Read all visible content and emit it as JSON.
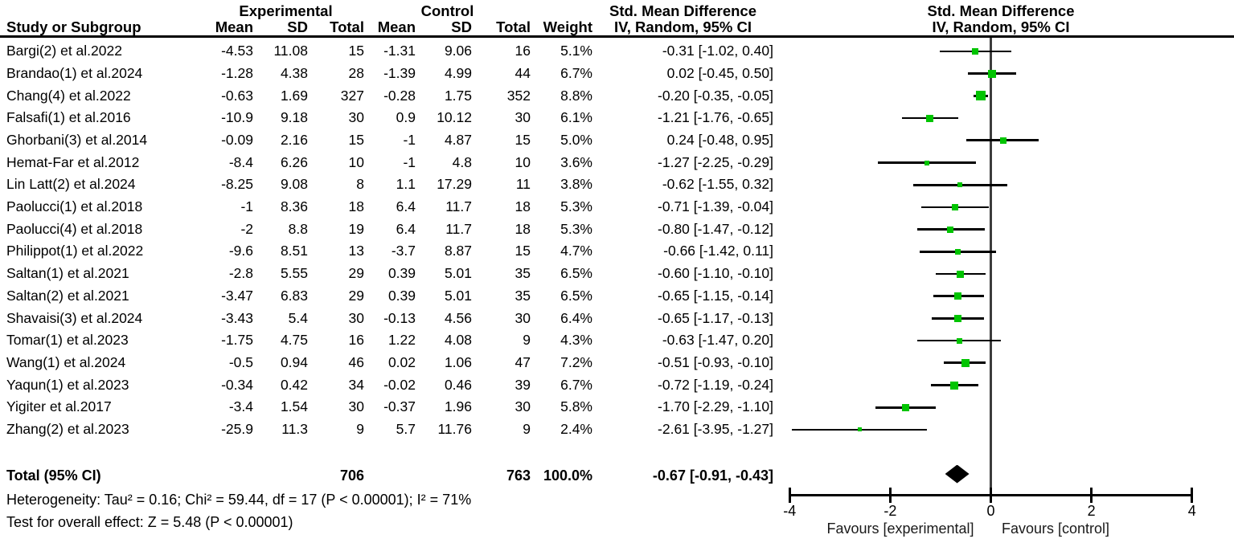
{
  "chart_data": {
    "type": "scatter",
    "subtype": "forest-plot-meta-analysis",
    "effect_measure": "Std. Mean Difference",
    "method": "IV, Random, 95% CI",
    "columns": {
      "group1_label": "Experimental",
      "group2_label": "Control",
      "study": "Study or Subgroup",
      "mean": "Mean",
      "sd": "SD",
      "total": "Total",
      "weight": "Weight",
      "smd_header": "Std. Mean Difference",
      "ci_header": "IV, Random, 95% CI"
    },
    "studies": [
      {
        "name": "Bargi(2) et al.2022",
        "exp_mean": "-4.53",
        "exp_sd": "11.08",
        "exp_total": "15",
        "ctl_mean": "-1.31",
        "ctl_sd": "9.06",
        "ctl_total": "16",
        "weight": "5.1%",
        "weight_pct": 5.1,
        "ci_text": "-0.31 [-1.02, 0.40]",
        "effect": -0.31,
        "ci_low": -1.02,
        "ci_high": 0.4
      },
      {
        "name": "Brandao(1) et al.2024",
        "exp_mean": "-1.28",
        "exp_sd": "4.38",
        "exp_total": "28",
        "ctl_mean": "-1.39",
        "ctl_sd": "4.99",
        "ctl_total": "44",
        "weight": "6.7%",
        "weight_pct": 6.7,
        "ci_text": "0.02 [-0.45, 0.50]",
        "effect": 0.02,
        "ci_low": -0.45,
        "ci_high": 0.5
      },
      {
        "name": "Chang(4) et al.2022",
        "exp_mean": "-0.63",
        "exp_sd": "1.69",
        "exp_total": "327",
        "ctl_mean": "-0.28",
        "ctl_sd": "1.75",
        "ctl_total": "352",
        "weight": "8.8%",
        "weight_pct": 8.8,
        "ci_text": "-0.20 [-0.35, -0.05]",
        "effect": -0.2,
        "ci_low": -0.35,
        "ci_high": -0.05
      },
      {
        "name": "Falsafi(1) et al.2016",
        "exp_mean": "-10.9",
        "exp_sd": "9.18",
        "exp_total": "30",
        "ctl_mean": "0.9",
        "ctl_sd": "10.12",
        "ctl_total": "30",
        "weight": "6.1%",
        "weight_pct": 6.1,
        "ci_text": "-1.21 [-1.76, -0.65]",
        "effect": -1.21,
        "ci_low": -1.76,
        "ci_high": -0.65
      },
      {
        "name": "Ghorbani(3) et al.2014",
        "exp_mean": "-0.09",
        "exp_sd": "2.16",
        "exp_total": "15",
        "ctl_mean": "-1",
        "ctl_sd": "4.87",
        "ctl_total": "15",
        "weight": "5.0%",
        "weight_pct": 5.0,
        "ci_text": "0.24 [-0.48, 0.95]",
        "effect": 0.24,
        "ci_low": -0.48,
        "ci_high": 0.95
      },
      {
        "name": "Hemat-Far et al.2012",
        "exp_mean": "-8.4",
        "exp_sd": "6.26",
        "exp_total": "10",
        "ctl_mean": "-1",
        "ctl_sd": "4.8",
        "ctl_total": "10",
        "weight": "3.6%",
        "weight_pct": 3.6,
        "ci_text": "-1.27 [-2.25, -0.29]",
        "effect": -1.27,
        "ci_low": -2.25,
        "ci_high": -0.29
      },
      {
        "name": "Lin Latt(2) et al.2024",
        "exp_mean": "-8.25",
        "exp_sd": "9.08",
        "exp_total": "8",
        "ctl_mean": "1.1",
        "ctl_sd": "17.29",
        "ctl_total": "11",
        "weight": "3.8%",
        "weight_pct": 3.8,
        "ci_text": "-0.62 [-1.55, 0.32]",
        "effect": -0.62,
        "ci_low": -1.55,
        "ci_high": 0.32
      },
      {
        "name": "Paolucci(1) et al.2018",
        "exp_mean": "-1",
        "exp_sd": "8.36",
        "exp_total": "18",
        "ctl_mean": "6.4",
        "ctl_sd": "11.7",
        "ctl_total": "18",
        "weight": "5.3%",
        "weight_pct": 5.3,
        "ci_text": "-0.71 [-1.39, -0.04]",
        "effect": -0.71,
        "ci_low": -1.39,
        "ci_high": -0.04
      },
      {
        "name": "Paolucci(4) et al.2018",
        "exp_mean": "-2",
        "exp_sd": "8.8",
        "exp_total": "19",
        "ctl_mean": "6.4",
        "ctl_sd": "11.7",
        "ctl_total": "18",
        "weight": "5.3%",
        "weight_pct": 5.3,
        "ci_text": "-0.80 [-1.47, -0.12]",
        "effect": -0.8,
        "ci_low": -1.47,
        "ci_high": -0.12
      },
      {
        "name": "Philippot(1) et al.2022",
        "exp_mean": "-9.6",
        "exp_sd": "8.51",
        "exp_total": "13",
        "ctl_mean": "-3.7",
        "ctl_sd": "8.87",
        "ctl_total": "15",
        "weight": "4.7%",
        "weight_pct": 4.7,
        "ci_text": "-0.66 [-1.42, 0.11]",
        "effect": -0.66,
        "ci_low": -1.42,
        "ci_high": 0.11
      },
      {
        "name": "Saltan(1) et al.2021",
        "exp_mean": "-2.8",
        "exp_sd": "5.55",
        "exp_total": "29",
        "ctl_mean": "0.39",
        "ctl_sd": "5.01",
        "ctl_total": "35",
        "weight": "6.5%",
        "weight_pct": 6.5,
        "ci_text": "-0.60 [-1.10, -0.10]",
        "effect": -0.6,
        "ci_low": -1.1,
        "ci_high": -0.1
      },
      {
        "name": "Saltan(2) et al.2021",
        "exp_mean": "-3.47",
        "exp_sd": "6.83",
        "exp_total": "29",
        "ctl_mean": "0.39",
        "ctl_sd": "5.01",
        "ctl_total": "35",
        "weight": "6.5%",
        "weight_pct": 6.5,
        "ci_text": "-0.65 [-1.15, -0.14]",
        "effect": -0.65,
        "ci_low": -1.15,
        "ci_high": -0.14
      },
      {
        "name": "Shavaisi(3) et al.2024",
        "exp_mean": "-3.43",
        "exp_sd": "5.4",
        "exp_total": "30",
        "ctl_mean": "-0.13",
        "ctl_sd": "4.56",
        "ctl_total": "30",
        "weight": "6.4%",
        "weight_pct": 6.4,
        "ci_text": "-0.65 [-1.17, -0.13]",
        "effect": -0.65,
        "ci_low": -1.17,
        "ci_high": -0.13
      },
      {
        "name": "Tomar(1) et al.2023",
        "exp_mean": "-1.75",
        "exp_sd": "4.75",
        "exp_total": "16",
        "ctl_mean": "1.22",
        "ctl_sd": "4.08",
        "ctl_total": "9",
        "weight": "4.3%",
        "weight_pct": 4.3,
        "ci_text": "-0.63 [-1.47, 0.20]",
        "effect": -0.63,
        "ci_low": -1.47,
        "ci_high": 0.2
      },
      {
        "name": "Wang(1) et al.2024",
        "exp_mean": "-0.5",
        "exp_sd": "0.94",
        "exp_total": "46",
        "ctl_mean": "0.02",
        "ctl_sd": "1.06",
        "ctl_total": "47",
        "weight": "7.2%",
        "weight_pct": 7.2,
        "ci_text": "-0.51 [-0.93, -0.10]",
        "effect": -0.51,
        "ci_low": -0.93,
        "ci_high": -0.1
      },
      {
        "name": "Yaqun(1) et al.2023",
        "exp_mean": "-0.34",
        "exp_sd": "0.42",
        "exp_total": "34",
        "ctl_mean": "-0.02",
        "ctl_sd": "0.46",
        "ctl_total": "39",
        "weight": "6.7%",
        "weight_pct": 6.7,
        "ci_text": "-0.72 [-1.19, -0.24]",
        "effect": -0.72,
        "ci_low": -1.19,
        "ci_high": -0.24
      },
      {
        "name": "Yigiter et al.2017",
        "exp_mean": "-3.4",
        "exp_sd": "1.54",
        "exp_total": "30",
        "ctl_mean": "-0.37",
        "ctl_sd": "1.96",
        "ctl_total": "30",
        "weight": "5.8%",
        "weight_pct": 5.8,
        "ci_text": "-1.70 [-2.29, -1.10]",
        "effect": -1.7,
        "ci_low": -2.29,
        "ci_high": -1.1
      },
      {
        "name": "Zhang(2) et al.2023",
        "exp_mean": "-25.9",
        "exp_sd": "11.3",
        "exp_total": "9",
        "ctl_mean": "5.7",
        "ctl_sd": "11.76",
        "ctl_total": "9",
        "weight": "2.4%",
        "weight_pct": 2.4,
        "ci_text": "-2.61 [-3.95, -1.27]",
        "effect": -2.61,
        "ci_low": -3.95,
        "ci_high": -1.27
      }
    ],
    "total_row": {
      "label": "Total (95% CI)",
      "exp_total": "706",
      "ctl_total": "763",
      "weight": "100.0%",
      "ci_text": "-0.67 [-0.91, -0.43]",
      "effect": -0.67,
      "ci_low": -0.91,
      "ci_high": -0.43
    },
    "heterogeneity_text": "Heterogeneity: Tau² = 0.16; Chi² = 59.44, df = 17 (P < 0.00001); I² = 71%",
    "overall_effect_text": "Test for overall effect: Z = 5.48 (P < 0.00001)",
    "axis": {
      "xlim": [
        -4,
        4
      ],
      "ticks": [
        -4,
        -2,
        0,
        2,
        4
      ],
      "favours_left": "Favours [experimental]",
      "favours_right": "Favours [control]"
    },
    "colors": {
      "marker": "#00c400",
      "ci_line": "#000000",
      "diamond": "#000000",
      "zero_line": "#3d3d3d"
    }
  }
}
